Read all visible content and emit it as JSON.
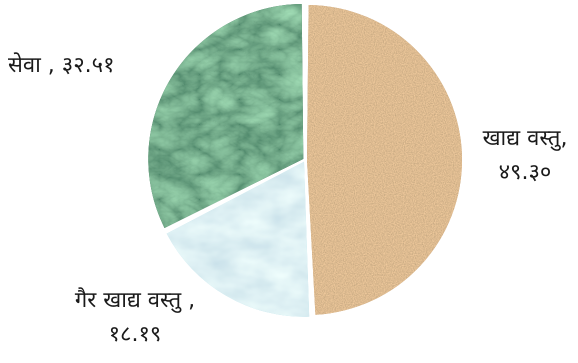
{
  "chart_data": {
    "type": "pie",
    "slices": [
      {
        "label_line1": "खाद्य वस्तु,",
        "label_line2": "४९.३०",
        "value": 49.3,
        "texture": "sand",
        "color": "#c49a6c"
      },
      {
        "label_line1": "गैर खाद्य वस्तु ,",
        "label_line2": "१८.१९",
        "value": 18.19,
        "texture": "water",
        "color": "#a9dde8"
      },
      {
        "label_line1": "सेवा , ३२.५१",
        "label_line2": "",
        "value": 32.51,
        "texture": "marble",
        "color": "#1f5a3a"
      }
    ]
  }
}
